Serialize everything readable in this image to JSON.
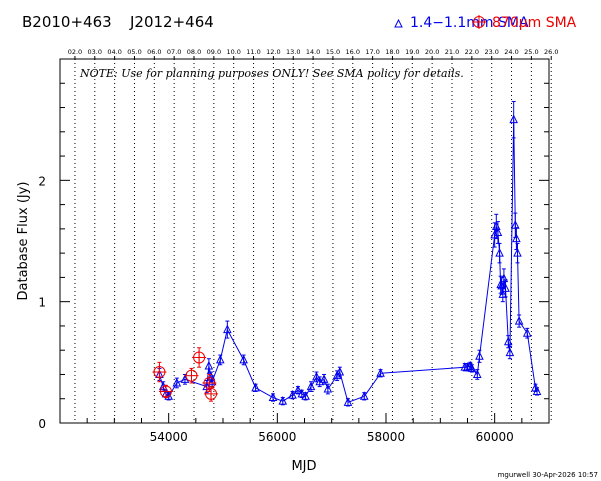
{
  "header": {
    "source_name": "B2010+463",
    "alt_name": "J2012+464",
    "legend_blue_label": "1.4−1.1mm SMA",
    "legend_red_label": "870μm SMA"
  },
  "note": "NOTE: Use for planning purposes ONLY! See SMA policy for details.",
  "footer": "mgurwell 30-Apr-2026 10:57",
  "colors": {
    "blue_series": "#0000ee",
    "red_series": "#ee0000",
    "axis": "#000000"
  },
  "chart_data": {
    "type": "scatter",
    "xlabel": "MJD",
    "ylabel": "Database Flux (Jy)",
    "xlim": [
      52000,
      61000
    ],
    "ylim": [
      0,
      3
    ],
    "x_ticks": [
      54000,
      56000,
      58000,
      60000
    ],
    "x_tick_labels": [
      "54000",
      "56000",
      "58000",
      "60000"
    ],
    "y_ticks": [
      0,
      1,
      2
    ],
    "y_tick_labels": [
      "0",
      "1",
      "2"
    ],
    "top_axis_labels": [
      "02.0",
      "03.0",
      "04.0",
      "05.0",
      "06.0",
      "07.0",
      "08.0",
      "09.0",
      "10.0",
      "11.0",
      "12.0",
      "13.0",
      "14.0",
      "15.0",
      "16.0",
      "17.0",
      "18.0",
      "19.0",
      "20.0",
      "21.0",
      "22.0",
      "23.0",
      "24.0",
      "25.0",
      "26.0"
    ],
    "top_axis_start_mjd": 52275,
    "top_axis_step_mjd": 365.25,
    "grid": "dotted vertical lines at each year",
    "legend_position": "top",
    "series": [
      {
        "name": "1.4−1.1mm SMA",
        "marker": "triangle",
        "connected": true,
        "points": [
          [
            53830,
            0.4,
            0.05
          ],
          [
            53900,
            0.3,
            0.04
          ],
          [
            53950,
            0.24,
            0.03
          ],
          [
            54000,
            0.22,
            0.03
          ],
          [
            54150,
            0.33,
            0.04
          ],
          [
            54300,
            0.36,
            0.04
          ],
          [
            54700,
            0.3,
            0.05
          ],
          [
            54740,
            0.47,
            0.06
          ],
          [
            54780,
            0.38,
            0.04
          ],
          [
            54800,
            0.34,
            0.04
          ],
          [
            54950,
            0.52,
            0.04
          ],
          [
            55080,
            0.77,
            0.07
          ],
          [
            55380,
            0.52,
            0.04
          ],
          [
            55600,
            0.29,
            0.03
          ],
          [
            55920,
            0.21,
            0.03
          ],
          [
            56100,
            0.18,
            0.03
          ],
          [
            56280,
            0.23,
            0.03
          ],
          [
            56380,
            0.27,
            0.03
          ],
          [
            56450,
            0.24,
            0.03
          ],
          [
            56520,
            0.22,
            0.03
          ],
          [
            56620,
            0.3,
            0.04
          ],
          [
            56720,
            0.38,
            0.04
          ],
          [
            56780,
            0.34,
            0.04
          ],
          [
            56860,
            0.36,
            0.04
          ],
          [
            56930,
            0.28,
            0.04
          ],
          [
            57100,
            0.39,
            0.04
          ],
          [
            57150,
            0.42,
            0.04
          ],
          [
            57300,
            0.17,
            0.03
          ],
          [
            57600,
            0.22,
            0.03
          ],
          [
            57900,
            0.41,
            0.03
          ],
          [
            59450,
            0.46,
            0.03
          ],
          [
            59500,
            0.46,
            0.03
          ],
          [
            59550,
            0.47,
            0.03
          ],
          [
            59580,
            0.45,
            0.03
          ],
          [
            59680,
            0.4,
            0.04
          ],
          [
            59720,
            0.55,
            0.05
          ],
          [
            60000,
            1.55,
            0.1
          ],
          [
            60030,
            1.62,
            0.1
          ],
          [
            60060,
            1.57,
            0.09
          ],
          [
            60090,
            1.4,
            0.08
          ],
          [
            60110,
            1.14,
            0.07
          ],
          [
            60130,
            1.13,
            0.07
          ],
          [
            60150,
            1.06,
            0.06
          ],
          [
            60170,
            1.19,
            0.08
          ],
          [
            60200,
            1.11,
            0.07
          ],
          [
            60250,
            0.67,
            0.05
          ],
          [
            60280,
            0.58,
            0.05
          ],
          [
            60350,
            2.5,
            0.15
          ],
          [
            60380,
            1.63,
            0.1
          ],
          [
            60400,
            1.52,
            0.09
          ],
          [
            60420,
            1.4,
            0.08
          ],
          [
            60450,
            0.84,
            0.05
          ],
          [
            60600,
            0.74,
            0.04
          ],
          [
            60750,
            0.29,
            0.03
          ],
          [
            60780,
            0.26,
            0.03
          ]
        ]
      },
      {
        "name": "870μm SMA",
        "marker": "circle-plus",
        "connected": false,
        "points": [
          [
            53830,
            0.42,
            0.08
          ],
          [
            53950,
            0.26,
            0.05
          ],
          [
            54420,
            0.39,
            0.06
          ],
          [
            54560,
            0.54,
            0.08
          ],
          [
            54750,
            0.33,
            0.07
          ],
          [
            54780,
            0.24,
            0.06
          ]
        ]
      }
    ]
  }
}
